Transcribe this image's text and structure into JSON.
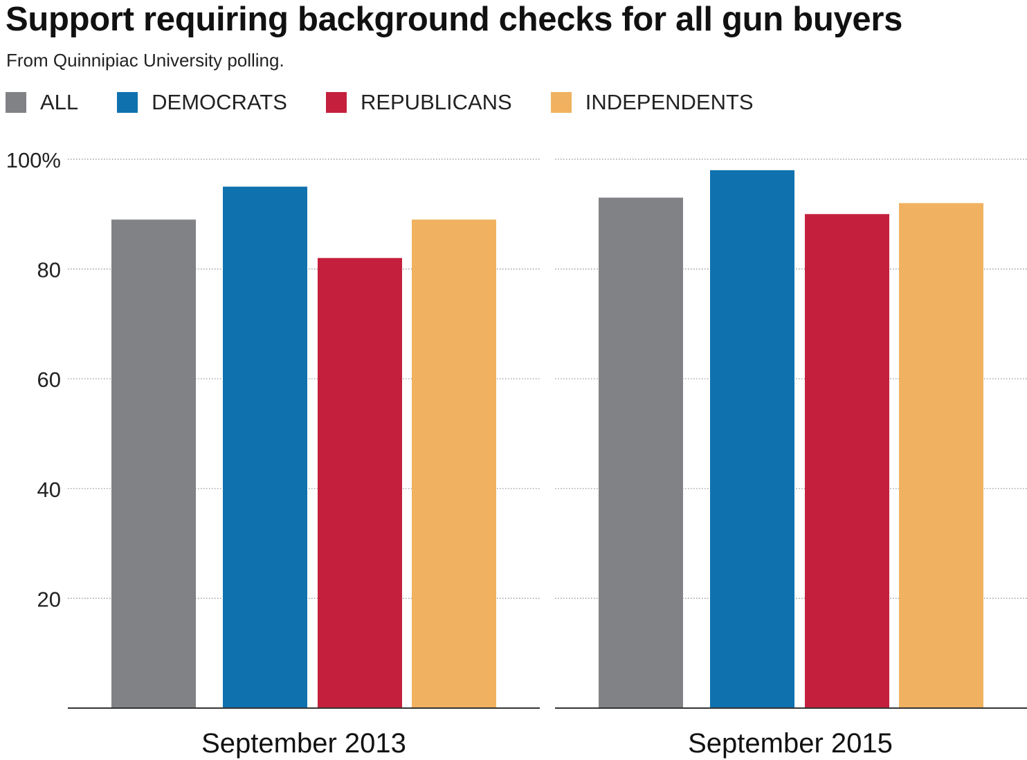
{
  "chart_data": {
    "type": "bar",
    "title": "Support requiring background checks for all gun buyers",
    "subtitle": "From Quinnipiac University polling.",
    "legend": [
      {
        "name": "ALL",
        "color": "#818285"
      },
      {
        "name": "DEMOCRATS",
        "color": "#0f72af"
      },
      {
        "name": "REPUBLICANS",
        "color": "#c4203d"
      },
      {
        "name": "INDEPENDENTS",
        "color": "#f0b260"
      }
    ],
    "categories": [
      "September 2013",
      "September 2015"
    ],
    "series": [
      {
        "name": "ALL",
        "values": [
          89,
          93
        ]
      },
      {
        "name": "DEMOCRATS",
        "values": [
          95,
          98
        ]
      },
      {
        "name": "REPUBLICANS",
        "values": [
          82,
          90
        ]
      },
      {
        "name": "INDEPENDENTS",
        "values": [
          89,
          92
        ]
      }
    ],
    "yticks": [
      "20",
      "40",
      "60",
      "80",
      "100%"
    ],
    "ytick_values": [
      20,
      40,
      60,
      80,
      100
    ],
    "ylim": [
      0,
      100
    ],
    "grid": true,
    "xlabel": "",
    "ylabel": ""
  }
}
